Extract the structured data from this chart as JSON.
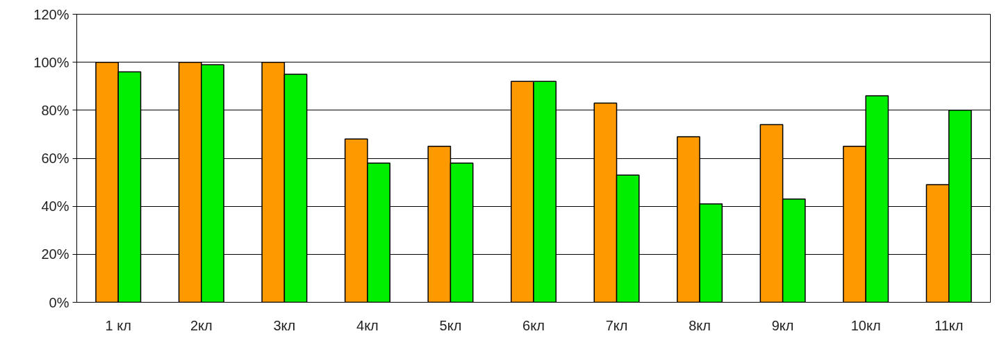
{
  "chart_data": {
    "type": "bar",
    "categories": [
      "1 кл",
      "2кл",
      "3кл",
      "4кл",
      "5кл",
      "6кл",
      "7кл",
      "8кл",
      "9кл",
      "10кл",
      "11кл"
    ],
    "series": [
      {
        "color": "#ff9900",
        "values": [
          100,
          100,
          100,
          68,
          65,
          92,
          83,
          69,
          74,
          65,
          49
        ]
      },
      {
        "color": "#00ee00",
        "values": [
          96,
          99,
          95,
          58,
          58,
          92,
          53,
          41,
          43,
          86,
          80
        ]
      }
    ],
    "ylim": [
      0,
      120
    ],
    "yticks": [
      {
        "value": 0,
        "label": "0%"
      },
      {
        "value": 20,
        "label": "20%"
      },
      {
        "value": 40,
        "label": "40%"
      },
      {
        "value": 60,
        "label": "60%"
      },
      {
        "value": 80,
        "label": "80%"
      },
      {
        "value": 100,
        "label": "100%"
      },
      {
        "value": 120,
        "label": "120%"
      }
    ],
    "grid": "y"
  }
}
